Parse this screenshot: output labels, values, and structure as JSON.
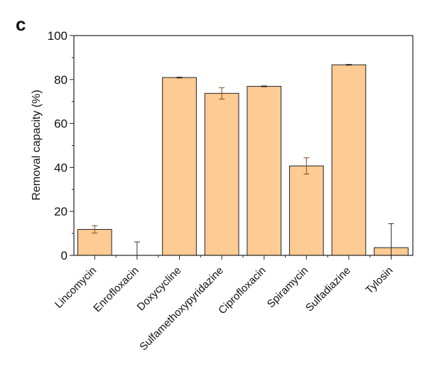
{
  "panel_label": "c",
  "chart_data": {
    "type": "bar",
    "title": "",
    "xlabel": "",
    "ylabel": "Removal capacity (%)",
    "ylim": [
      0,
      100
    ],
    "yticks": [
      0,
      20,
      40,
      60,
      80,
      100
    ],
    "grid": false,
    "categories": [
      "Lincomycin",
      "Enrofloxacin",
      "Doxycycline",
      "Sulfamethoxypyridazine",
      "Ciprofloxacin",
      "Spiramycin",
      "Sulfadiazine",
      "Tylosin"
    ],
    "values": [
      11.8,
      0,
      80.9,
      73.7,
      76.9,
      40.7,
      86.7,
      3.5
    ],
    "errors": [
      1.7,
      6.1,
      0.2,
      2.6,
      0.2,
      3.7,
      0.2,
      10.9
    ],
    "bar_color": "#FDCB93",
    "edge_color": "#222222"
  }
}
